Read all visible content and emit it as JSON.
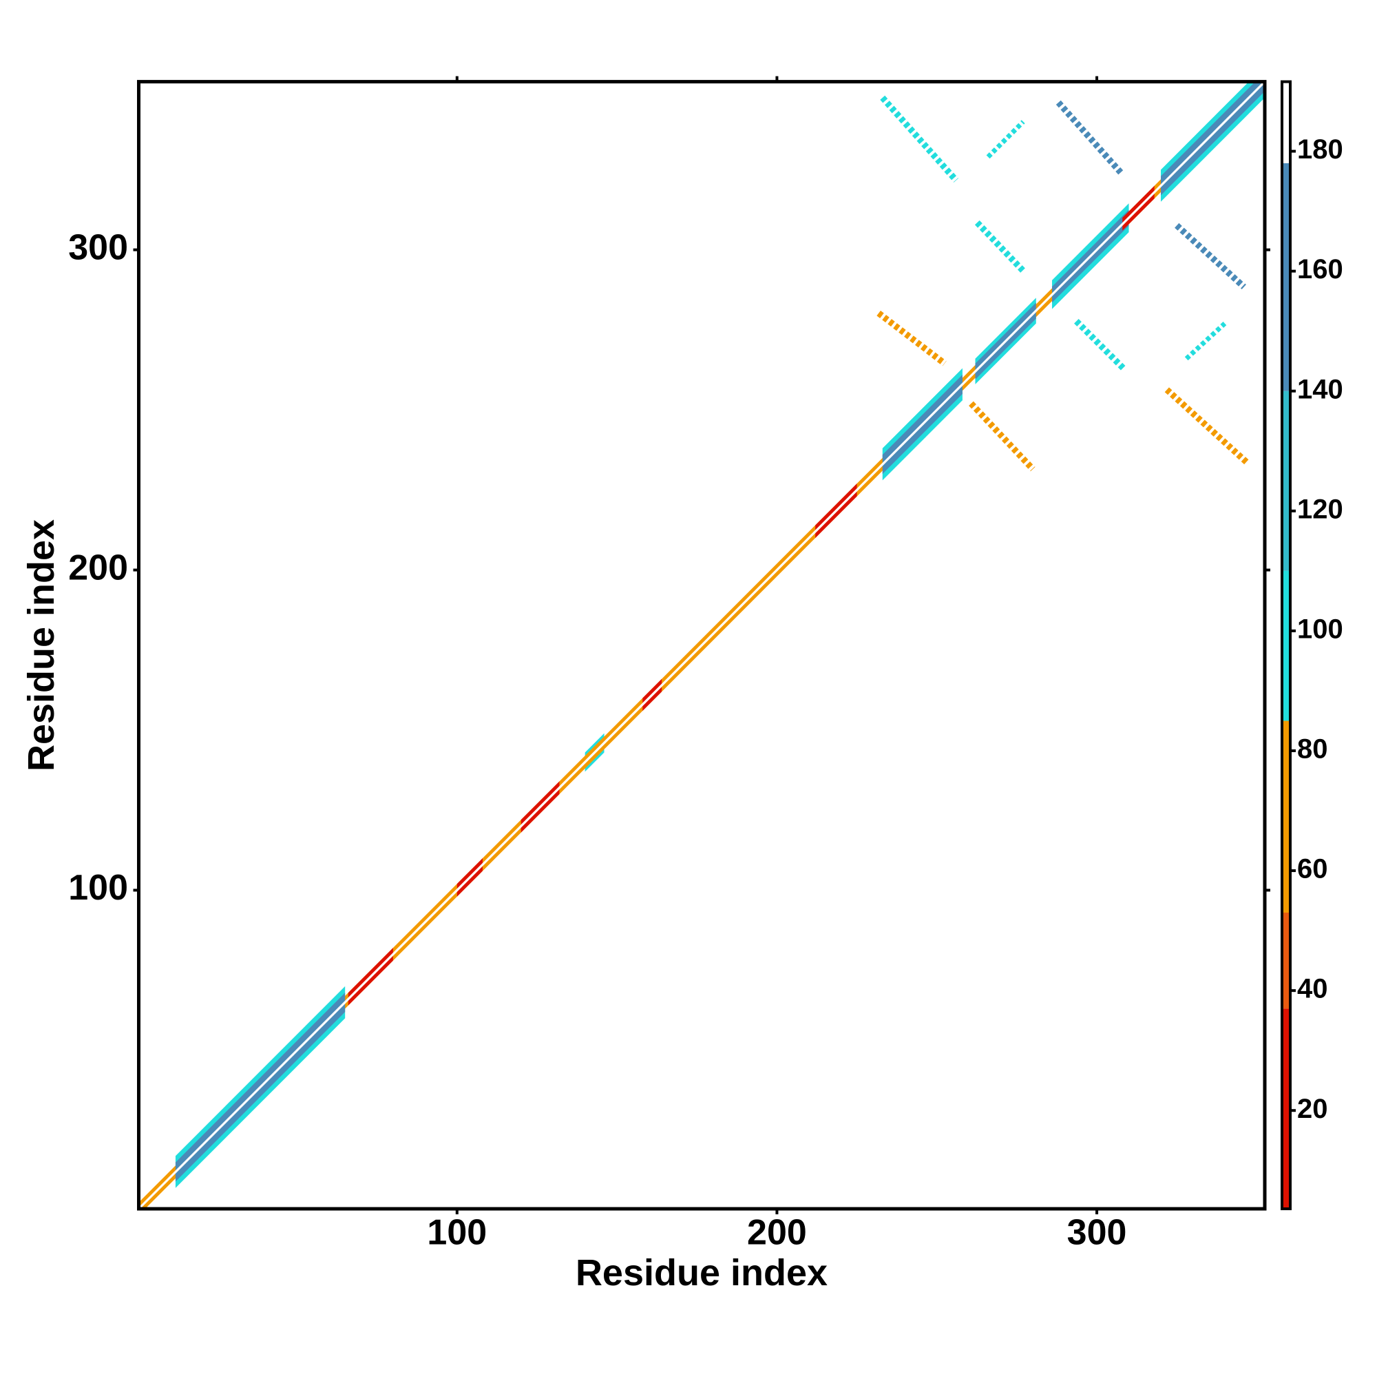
{
  "chart_data": {
    "type": "heatmap",
    "x_label": "Residue index",
    "y_label": "Residue index",
    "xlim": [
      0.5,
      352.5
    ],
    "ylim": [
      0.5,
      352.5
    ],
    "xticks": [
      100,
      200,
      300
    ],
    "yticks": [
      100,
      200,
      300
    ],
    "colorbar": {
      "lim": [
        3.6,
        191.6
      ],
      "ticks": [
        20,
        40,
        60,
        80,
        100,
        120,
        140,
        160,
        180
      ],
      "colors": [
        {
          "from": 3.6,
          "to": 37,
          "color": "#dd1100"
        },
        {
          "from": 37,
          "to": 53,
          "color": "#e85a10"
        },
        {
          "from": 53,
          "to": 85,
          "color": "#f39a00"
        },
        {
          "from": 85,
          "to": 110,
          "color": "#22dddd"
        },
        {
          "from": 110,
          "to": 140,
          "color": "#33bbcc"
        },
        {
          "from": 140,
          "to": 178,
          "color": "#4a8ab8"
        },
        {
          "from": 178,
          "to": 191.6,
          "color": "#ffffff"
        }
      ]
    },
    "diagonal": [
      {
        "from": 12,
        "to": 65,
        "width": 10,
        "value": 100
      },
      {
        "from": 233,
        "to": 258,
        "width": 10,
        "value": 100
      },
      {
        "from": 262,
        "to": 281,
        "width": 8,
        "value": 100
      },
      {
        "from": 286,
        "to": 310,
        "width": 9,
        "value": 100
      },
      {
        "from": 320,
        "to": 352,
        "width": 10,
        "value": 100
      },
      {
        "from": 140,
        "to": 146,
        "width": 6,
        "value": 100
      },
      {
        "from": 1,
        "to": 352,
        "width": 4,
        "value": 65
      },
      {
        "from": 12,
        "to": 65,
        "width": 6,
        "value": 150
      },
      {
        "from": 233,
        "to": 258,
        "width": 6,
        "value": 150
      },
      {
        "from": 262,
        "to": 281,
        "width": 5,
        "value": 150
      },
      {
        "from": 286,
        "to": 310,
        "width": 5,
        "value": 150
      },
      {
        "from": 320,
        "to": 352,
        "width": 6,
        "value": 150
      },
      {
        "from": 66,
        "to": 80,
        "width": 4,
        "value": 20
      },
      {
        "from": 100,
        "to": 108,
        "width": 4,
        "value": 20
      },
      {
        "from": 120,
        "to": 132,
        "width": 4,
        "value": 20
      },
      {
        "from": 158,
        "to": 164,
        "width": 4,
        "value": 20
      },
      {
        "from": 212,
        "to": 225,
        "width": 4,
        "value": 20
      },
      {
        "from": 308,
        "to": 318,
        "width": 4,
        "value": 20
      },
      {
        "from": 1,
        "to": 352,
        "width": 1,
        "value": 185
      }
    ],
    "streaks": [
      {
        "x": [
          233,
          256
        ],
        "y": [
          347.5,
          321.7
        ],
        "width": 2,
        "value": 95
      },
      {
        "x": [
          288,
          307.6
        ],
        "y": [
          346,
          324
        ],
        "width": 2,
        "value": 150
      },
      {
        "x": [
          262.6,
          277
        ],
        "y": [
          308.5,
          293.4
        ],
        "width": 2,
        "value": 95
      },
      {
        "x": [
          325,
          346
        ],
        "y": [
          307.6,
          288.4
        ],
        "width": 2,
        "value": 150
      },
      {
        "x": [
          231.8,
          252.4
        ],
        "y": [
          280.2,
          264.5
        ],
        "width": 2,
        "value": 65
      },
      {
        "x": [
          293.6,
          308.7
        ],
        "y": [
          277.7,
          262.6
        ],
        "width": 2,
        "value": 95
      },
      {
        "x": [
          260.7,
          280
        ],
        "y": [
          252,
          231.5
        ],
        "width": 2,
        "value": 65
      },
      {
        "x": [
          321.9,
          347
        ],
        "y": [
          256.3,
          233.5
        ],
        "width": 2,
        "value": 65
      },
      {
        "x": [
          266,
          277
        ],
        "y": [
          329,
          340
        ],
        "width": 1.5,
        "value": 95
      },
      {
        "x": [
          328,
          340
        ],
        "y": [
          266,
          277
        ],
        "width": 1.5,
        "value": 95
      }
    ]
  }
}
